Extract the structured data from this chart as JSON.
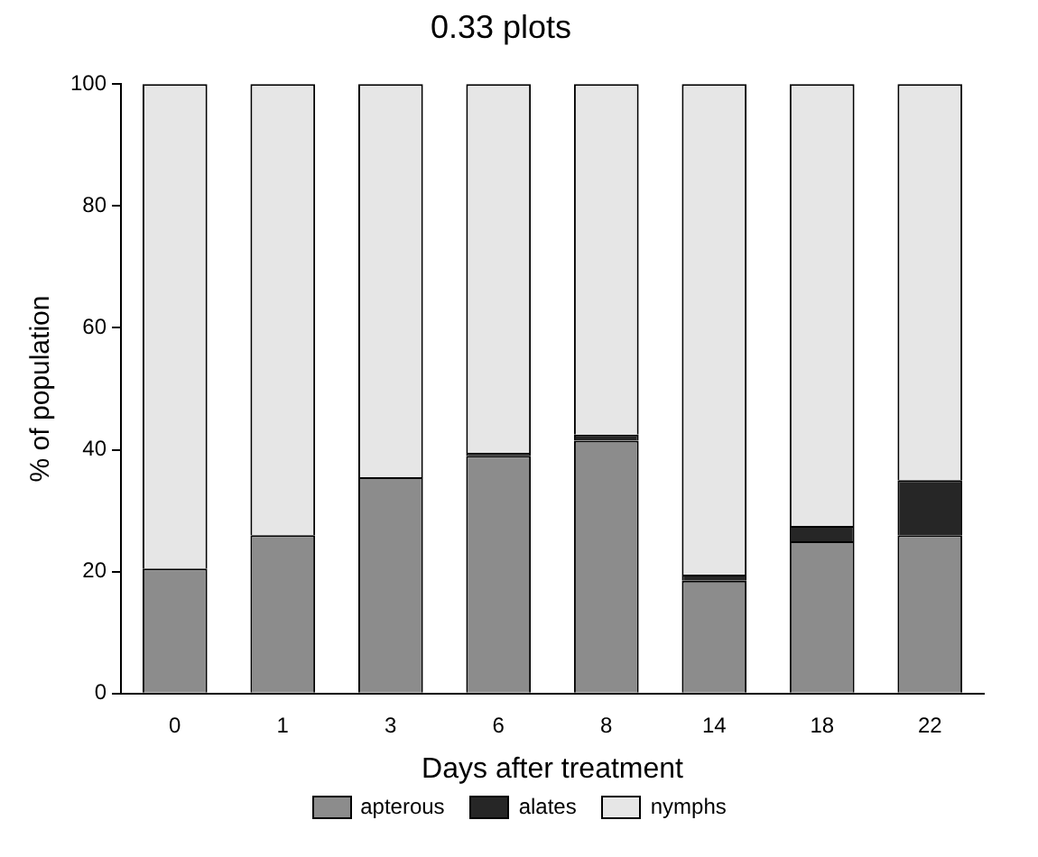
{
  "chart_data": {
    "type": "bar",
    "title": "0.33 plots",
    "xlabel": "Days after treatment",
    "ylabel": "% of population",
    "categories": [
      "0",
      "1",
      "3",
      "6",
      "8",
      "14",
      "18",
      "22"
    ],
    "stacked": true,
    "series": [
      {
        "name": "apterous",
        "color": "#8c8c8c",
        "values": [
          20.5,
          26,
          35.5,
          39,
          41.5,
          18.5,
          25,
          26
        ]
      },
      {
        "name": "alates",
        "color": "#262626",
        "values": [
          0,
          0,
          0,
          0.5,
          1,
          1,
          2.5,
          9
        ]
      },
      {
        "name": "nymphs",
        "color": "#e6e6e6",
        "values": [
          79.5,
          74,
          64.5,
          60.5,
          57.5,
          80.5,
          72.5,
          65
        ]
      }
    ],
    "ylim": [
      0,
      100
    ],
    "yticks": [
      0,
      20,
      40,
      60,
      80,
      100
    ],
    "grid": false,
    "legend": "bottom"
  }
}
